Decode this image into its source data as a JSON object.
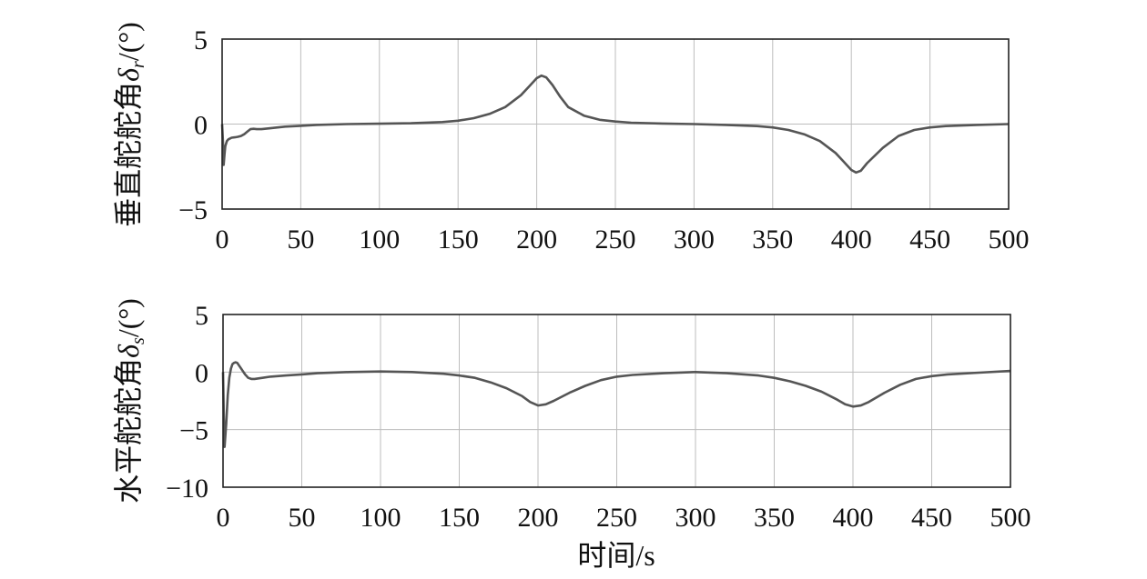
{
  "chart_data": [
    {
      "type": "line",
      "ylabel": "垂直舵舵角δr/(°)",
      "ylabel_main": "垂直舵舵角",
      "ylabel_symbol": "δ",
      "ylabel_sub": "r",
      "ylabel_unit": "/(°)",
      "xlabel": "",
      "xlim": [
        0,
        500
      ],
      "ylim": [
        -5,
        5
      ],
      "xticks": [
        "0",
        "50",
        "100",
        "150",
        "200",
        "250",
        "300",
        "350",
        "400",
        "450",
        "500"
      ],
      "yticks": [
        "5",
        "0",
        "−5"
      ],
      "grid": true,
      "x": [
        0,
        0.5,
        1,
        1.5,
        2,
        3,
        4,
        5,
        6,
        8,
        10,
        12,
        14,
        16,
        18,
        20,
        22,
        25,
        30,
        40,
        50,
        60,
        80,
        100,
        120,
        140,
        150,
        160,
        170,
        180,
        190,
        195,
        200,
        203,
        206,
        210,
        215,
        220,
        230,
        240,
        250,
        260,
        280,
        300,
        320,
        340,
        350,
        360,
        370,
        380,
        390,
        395,
        400,
        403,
        406,
        410,
        420,
        430,
        440,
        450,
        460,
        480,
        500
      ],
      "y": [
        0,
        -1.0,
        -2.4,
        -1.8,
        -1.3,
        -1.0,
        -0.9,
        -0.85,
        -0.8,
        -0.78,
        -0.75,
        -0.7,
        -0.6,
        -0.45,
        -0.3,
        -0.28,
        -0.3,
        -0.3,
        -0.25,
        -0.15,
        -0.1,
        -0.05,
        0.0,
        0.02,
        0.05,
        0.12,
        0.2,
        0.35,
        0.6,
        1.0,
        1.7,
        2.2,
        2.7,
        2.85,
        2.75,
        2.3,
        1.6,
        1.0,
        0.5,
        0.25,
        0.15,
        0.08,
        0.03,
        0.0,
        -0.05,
        -0.12,
        -0.2,
        -0.35,
        -0.6,
        -1.0,
        -1.7,
        -2.2,
        -2.7,
        -2.85,
        -2.75,
        -2.3,
        -1.4,
        -0.7,
        -0.35,
        -0.2,
        -0.12,
        -0.05,
        0.0
      ]
    },
    {
      "type": "line",
      "ylabel": "水平舵舵角δs/(°)",
      "ylabel_main": "水平舵舵角",
      "ylabel_symbol": "δ",
      "ylabel_sub": "s",
      "ylabel_unit": "/(°)",
      "xlabel": "时间/s",
      "xlim": [
        0,
        500
      ],
      "ylim": [
        -10,
        5
      ],
      "xticks": [
        "0",
        "50",
        "100",
        "150",
        "200",
        "250",
        "300",
        "350",
        "400",
        "450",
        "500"
      ],
      "yticks": [
        "5",
        "0",
        "−5",
        "−10"
      ],
      "grid": true,
      "x": [
        0,
        0.5,
        1,
        2,
        3,
        4,
        5,
        6,
        7,
        8,
        9,
        10,
        12,
        14,
        16,
        18,
        20,
        25,
        30,
        40,
        50,
        60,
        80,
        100,
        120,
        140,
        150,
        160,
        170,
        180,
        190,
        195,
        200,
        205,
        210,
        220,
        230,
        240,
        250,
        260,
        280,
        300,
        320,
        340,
        350,
        360,
        370,
        380,
        390,
        395,
        400,
        405,
        410,
        420,
        430,
        440,
        450,
        460,
        480,
        500
      ],
      "y": [
        0,
        -4.0,
        -6.5,
        -4.5,
        -2.0,
        -0.5,
        0.3,
        0.7,
        0.8,
        0.85,
        0.8,
        0.6,
        0.2,
        -0.2,
        -0.5,
        -0.6,
        -0.6,
        -0.5,
        -0.4,
        -0.3,
        -0.2,
        -0.1,
        0.0,
        0.05,
        0.0,
        -0.15,
        -0.3,
        -0.5,
        -0.9,
        -1.4,
        -2.1,
        -2.6,
        -2.9,
        -2.8,
        -2.5,
        -1.8,
        -1.2,
        -0.7,
        -0.4,
        -0.25,
        -0.1,
        0.0,
        -0.1,
        -0.3,
        -0.5,
        -0.8,
        -1.2,
        -1.7,
        -2.4,
        -2.8,
        -3.0,
        -2.9,
        -2.6,
        -1.8,
        -1.1,
        -0.6,
        -0.35,
        -0.2,
        -0.05,
        0.1
      ]
    }
  ]
}
